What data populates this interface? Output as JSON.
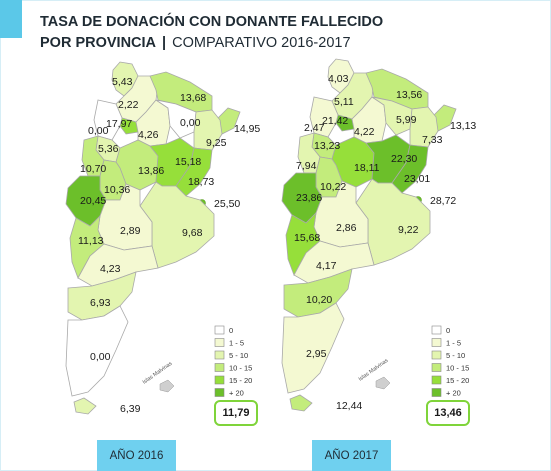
{
  "title": {
    "line1": "TASA DE DONACIÓN CON DONANTE FALLECIDO",
    "line2_bold": "POR PROVINCIA",
    "line2_sep": "|",
    "line2_rest": "COMPARATIVO 2016-2017"
  },
  "legend": {
    "items": [
      {
        "label": "0",
        "color": "#ffffff"
      },
      {
        "label": "1 - 5",
        "color": "#f4f9d2"
      },
      {
        "label": "5 - 10",
        "color": "#e3f5b0"
      },
      {
        "label": "10 - 15",
        "color": "#c3ec7c"
      },
      {
        "label": "15 - 20",
        "color": "#96df3a"
      },
      {
        "label": "+ 20",
        "color": "#6cbf2a"
      }
    ]
  },
  "islands_label": "Islas Malvinas",
  "maps": [
    {
      "year_label": "AÑO 2016",
      "total": "11,79",
      "provinces": [
        {
          "name": "Jujuy",
          "value": "5,43",
          "range": 2
        },
        {
          "name": "Salta",
          "value": "2,22",
          "range": 1
        },
        {
          "name": "Formosa",
          "value": "13,68",
          "range": 3
        },
        {
          "name": "Tucumán",
          "value": "17,97",
          "range": 4
        },
        {
          "name": "Catamarca",
          "value": "0,00",
          "range": 0
        },
        {
          "name": "Santiago del Estero",
          "value": "4,26",
          "range": 1
        },
        {
          "name": "Chaco",
          "value": "0,00",
          "range": 0
        },
        {
          "name": "Misiones",
          "value": "14,95",
          "range": 3
        },
        {
          "name": "Corrientes",
          "value": "9,25",
          "range": 2
        },
        {
          "name": "La Rioja",
          "value": "5,36",
          "range": 2
        },
        {
          "name": "San Juan",
          "value": "10,70",
          "range": 3
        },
        {
          "name": "Córdoba",
          "value": "13,86",
          "range": 3
        },
        {
          "name": "Santa Fe",
          "value": "15,18",
          "range": 4
        },
        {
          "name": "Entre Ríos",
          "value": "18,73",
          "range": 4
        },
        {
          "name": "San Luis",
          "value": "10,36",
          "range": 3
        },
        {
          "name": "Mendoza",
          "value": "20,45",
          "range": 5
        },
        {
          "name": "CABA",
          "value": "25,50",
          "range": 5
        },
        {
          "name": "Buenos Aires",
          "value": "9,68",
          "range": 2
        },
        {
          "name": "La Pampa",
          "value": "2,89",
          "range": 1
        },
        {
          "name": "Neuquén",
          "value": "11,13",
          "range": 3
        },
        {
          "name": "Río Negro",
          "value": "4,23",
          "range": 1
        },
        {
          "name": "Chubut",
          "value": "6,93",
          "range": 2
        },
        {
          "name": "Santa Cruz",
          "value": "0,00",
          "range": 0
        },
        {
          "name": "Tierra del Fuego",
          "value": "6,39",
          "range": 2
        }
      ]
    },
    {
      "year_label": "AÑO 2017",
      "total": "13,46",
      "provinces": [
        {
          "name": "Jujuy",
          "value": "4,03",
          "range": 1
        },
        {
          "name": "Salta",
          "value": "5,11",
          "range": 2
        },
        {
          "name": "Formosa",
          "value": "13,56",
          "range": 3
        },
        {
          "name": "Tucumán",
          "value": "21,42",
          "range": 5
        },
        {
          "name": "Catamarca",
          "value": "2,47",
          "range": 1
        },
        {
          "name": "Santiago del Estero",
          "value": "4,22",
          "range": 1
        },
        {
          "name": "Chaco",
          "value": "5,99",
          "range": 2
        },
        {
          "name": "Misiones",
          "value": "13,13",
          "range": 3
        },
        {
          "name": "Corrientes",
          "value": "7,33",
          "range": 2
        },
        {
          "name": "La Rioja",
          "value": "13,23",
          "range": 3
        },
        {
          "name": "San Juan",
          "value": "7,94",
          "range": 2
        },
        {
          "name": "Córdoba",
          "value": "18,11",
          "range": 4
        },
        {
          "name": "Santa Fe",
          "value": "22,30",
          "range": 5
        },
        {
          "name": "Entre Ríos",
          "value": "23,01",
          "range": 5
        },
        {
          "name": "San Luis",
          "value": "10,22",
          "range": 3
        },
        {
          "name": "Mendoza",
          "value": "23,86",
          "range": 5
        },
        {
          "name": "CABA",
          "value": "28,72",
          "range": 5
        },
        {
          "name": "Buenos Aires",
          "value": "9,22",
          "range": 2
        },
        {
          "name": "La Pampa",
          "value": "2,86",
          "range": 1
        },
        {
          "name": "Neuquén",
          "value": "15,68",
          "range": 4
        },
        {
          "name": "Río Negro",
          "value": "4,17",
          "range": 1
        },
        {
          "name": "Chubut",
          "value": "10,20",
          "range": 3
        },
        {
          "name": "Santa Cruz",
          "value": "2,95",
          "range": 1
        },
        {
          "name": "Tierra del Fuego",
          "value": "12,44",
          "range": 3
        }
      ]
    }
  ]
}
